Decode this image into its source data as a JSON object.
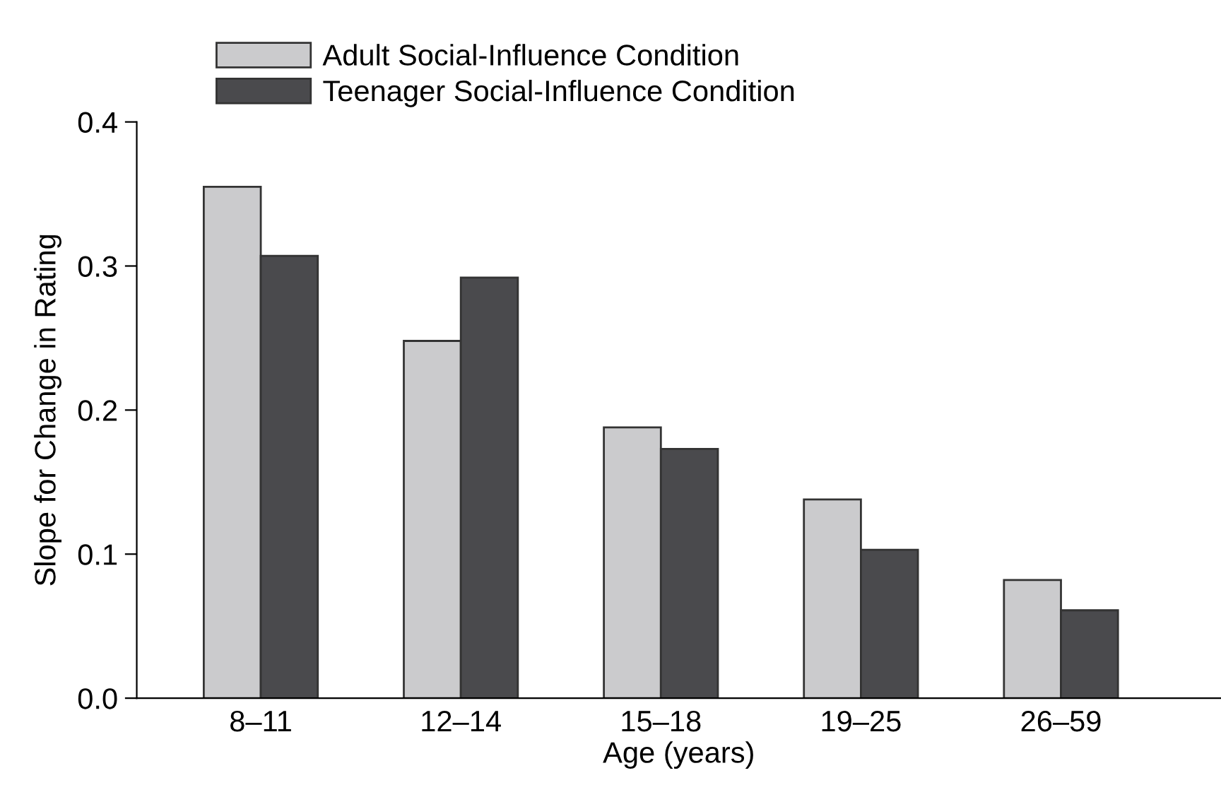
{
  "chart_data": {
    "type": "bar",
    "xlabel": "Age (years)",
    "ylabel": "Slope for Change in Rating",
    "categories": [
      "8–11",
      "12–14",
      "15–18",
      "19–25",
      "26–59"
    ],
    "series": [
      {
        "name": "Adult Social-Influence Condition",
        "color": "#cbcbcd",
        "values": [
          0.355,
          0.248,
          0.188,
          0.138,
          0.082
        ]
      },
      {
        "name": "Teenager Social-Influence Condition",
        "color": "#4a4a4d",
        "values": [
          0.307,
          0.292,
          0.173,
          0.103,
          0.061
        ]
      }
    ],
    "ylim": [
      0,
      0.4
    ],
    "yticks": [
      {
        "value": 0,
        "label": "0.0"
      },
      0.1,
      0.2,
      0.3,
      0.4
    ],
    "grid": false,
    "legend": "top left"
  }
}
